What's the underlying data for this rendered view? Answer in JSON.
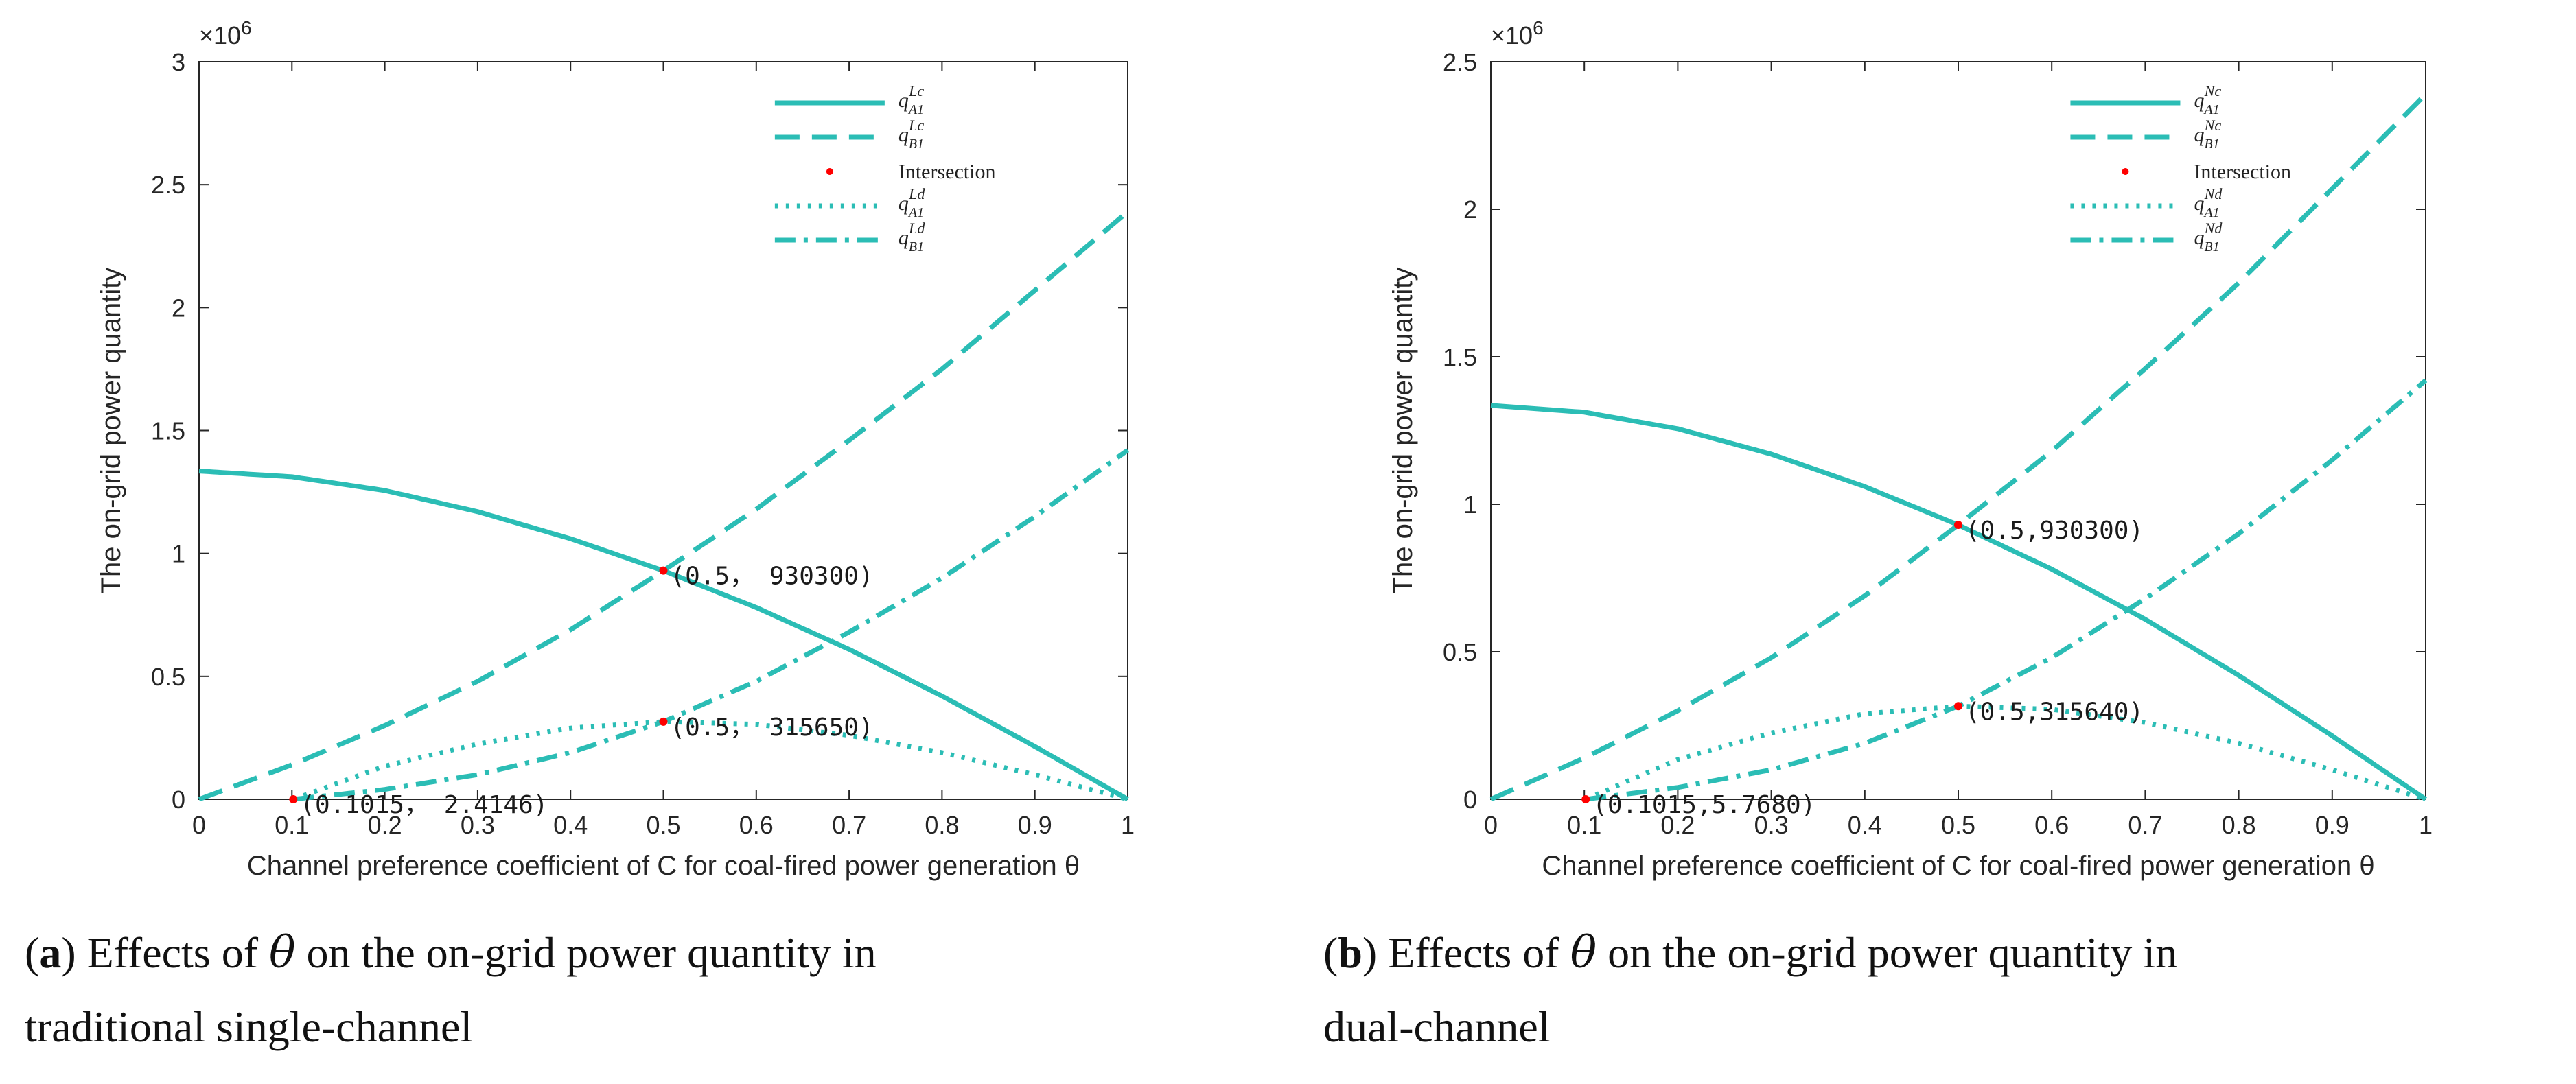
{
  "colors": {
    "line": "#2bbdb5",
    "intersection": "#ff0000",
    "axis": "#262626"
  },
  "chart_data": [
    {
      "type": "line",
      "title": "",
      "xlabel": "Channel preference coefficient of C for coal-fired power generation θ",
      "ylabel": "The on-grid power quantity",
      "exponent_label": "×10",
      "exponent_power": "6",
      "xlim": [
        0,
        1
      ],
      "ylim": [
        0,
        3
      ],
      "xticks": [
        "0",
        "0.1",
        "0.2",
        "0.3",
        "0.4",
        "0.5",
        "0.6",
        "0.7",
        "0.8",
        "0.9",
        "1"
      ],
      "yticks": [
        "0",
        "0.5",
        "1",
        "1.5",
        "2",
        "2.5",
        "3"
      ],
      "grid": false,
      "legend_placement": "top-right",
      "series": [
        {
          "name": "q",
          "sub": "A1",
          "sup": "Lc",
          "style": "solid",
          "x": [
            0,
            0.1,
            0.2,
            0.3,
            0.4,
            0.5,
            0.6,
            0.7,
            0.8,
            0.9,
            1
          ],
          "y": [
            1.335,
            1.312,
            1.256,
            1.17,
            1.06,
            0.93,
            0.78,
            0.61,
            0.42,
            0.215,
            0
          ]
        },
        {
          "name": "q",
          "sub": "B1",
          "sup": "Lc",
          "style": "dashed",
          "x": [
            0,
            0.1,
            0.2,
            0.3,
            0.4,
            0.5,
            0.6,
            0.7,
            0.8,
            0.9,
            1
          ],
          "y": [
            0,
            0.14,
            0.3,
            0.48,
            0.69,
            0.93,
            1.18,
            1.46,
            1.75,
            2.07,
            2.39
          ]
        },
        {
          "name": "Intersection",
          "style": "marker"
        },
        {
          "name": "q",
          "sub": "A1",
          "sup": "Ld",
          "style": "dotted",
          "x": [
            0.1015,
            0.2,
            0.3,
            0.4,
            0.5,
            0.6,
            0.7,
            0.8,
            0.9,
            1
          ],
          "y": [
            0,
            0.135,
            0.225,
            0.29,
            0.3157,
            0.305,
            0.26,
            0.19,
            0.1,
            0
          ]
        },
        {
          "name": "q",
          "sub": "B1",
          "sup": "Ld",
          "style": "dashdot",
          "x": [
            0.1015,
            0.2,
            0.3,
            0.4,
            0.5,
            0.6,
            0.7,
            0.8,
            0.9,
            1
          ],
          "y": [
            0,
            0.04,
            0.1,
            0.19,
            0.3157,
            0.48,
            0.68,
            0.9,
            1.15,
            1.42
          ]
        }
      ],
      "points": [
        {
          "x": 0.5,
          "y": 0.9303,
          "label": "(0.5， 930300)"
        },
        {
          "x": 0.5,
          "y": 0.31565,
          "label": "(0.5， 315650)"
        },
        {
          "x": 0.1015,
          "y": 0,
          "label": "(0.1015， 2.4146)"
        }
      ]
    },
    {
      "type": "line",
      "title": "",
      "xlabel": "Channel preference coefficient of C for coal-fired power generation θ",
      "ylabel": "The on-grid power quantity",
      "exponent_label": "×10",
      "exponent_power": "6",
      "xlim": [
        0,
        1
      ],
      "ylim": [
        0,
        2.5
      ],
      "xticks": [
        "0",
        "0.1",
        "0.2",
        "0.3",
        "0.4",
        "0.5",
        "0.6",
        "0.7",
        "0.8",
        "0.9",
        "1"
      ],
      "yticks": [
        "0",
        "0.5",
        "1",
        "1.5",
        "2",
        "2.5"
      ],
      "grid": false,
      "legend_placement": "top-right",
      "series": [
        {
          "name": "q",
          "sub": "A1",
          "sup": "Nc",
          "style": "solid",
          "x": [
            0,
            0.1,
            0.2,
            0.3,
            0.4,
            0.5,
            0.6,
            0.7,
            0.8,
            0.9,
            1
          ],
          "y": [
            1.335,
            1.312,
            1.256,
            1.17,
            1.06,
            0.93,
            0.78,
            0.61,
            0.42,
            0.215,
            0
          ]
        },
        {
          "name": "q",
          "sub": "B1",
          "sup": "Nc",
          "style": "dashed",
          "x": [
            0,
            0.1,
            0.2,
            0.3,
            0.4,
            0.5,
            0.6,
            0.7,
            0.8,
            0.9,
            1
          ],
          "y": [
            0,
            0.14,
            0.3,
            0.48,
            0.69,
            0.93,
            1.18,
            1.46,
            1.75,
            2.07,
            2.39
          ]
        },
        {
          "name": "Intersection",
          "style": "marker"
        },
        {
          "name": "q",
          "sub": "A1",
          "sup": "Nd",
          "style": "dotted",
          "x": [
            0.1015,
            0.2,
            0.3,
            0.4,
            0.5,
            0.6,
            0.7,
            0.8,
            0.9,
            1
          ],
          "y": [
            0,
            0.135,
            0.225,
            0.29,
            0.3156,
            0.305,
            0.26,
            0.19,
            0.1,
            0
          ]
        },
        {
          "name": "q",
          "sub": "B1",
          "sup": "Nd",
          "style": "dashdot",
          "x": [
            0.1015,
            0.2,
            0.3,
            0.4,
            0.5,
            0.6,
            0.7,
            0.8,
            0.9,
            1
          ],
          "y": [
            0,
            0.04,
            0.1,
            0.19,
            0.3156,
            0.48,
            0.68,
            0.9,
            1.15,
            1.42
          ]
        }
      ],
      "points": [
        {
          "x": 0.5,
          "y": 0.9303,
          "label": "(0.5,930300)"
        },
        {
          "x": 0.5,
          "y": 0.31564,
          "label": "(0.5,315640)"
        },
        {
          "x": 0.1015,
          "y": 0,
          "label": "(0.1015,5.7680)"
        }
      ]
    }
  ],
  "captions": [
    {
      "letter": "a",
      "lead": "Effects of",
      "theta": "θ",
      "line1_rest": "on the on-grid power quantity in",
      "line2": "traditional single-channel"
    },
    {
      "letter": "b",
      "lead": "Effects of",
      "theta": "θ",
      "line1_rest": "on the on-grid power quantity in",
      "line2": "dual-channel"
    }
  ]
}
